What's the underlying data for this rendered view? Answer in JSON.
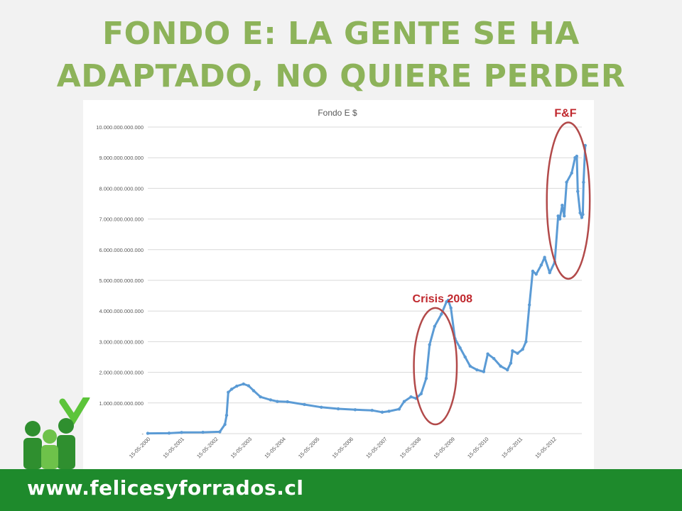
{
  "slide": {
    "title_line1": "FONDO E: LA GENTE SE HA",
    "title_line2": "ADAPTADO, NO QUIERE PERDER",
    "footer_url": "www.felicesyforrados.cl"
  },
  "colors": {
    "title": "#8db35a",
    "footer": "#1e8a2c",
    "series": "#5b9bd5",
    "annotation": "#b24a4a",
    "annotation_text": "#c0272d"
  },
  "logo": {
    "icon": "people-group-icon"
  },
  "chart_data": {
    "type": "line",
    "title": "Fondo E $",
    "ylim": [
      0,
      10000000000000
    ],
    "yticks": [
      {
        "value": 0,
        "label": "-"
      },
      {
        "value": 1000000000000,
        "label": "1.000.000.000.000"
      },
      {
        "value": 2000000000000,
        "label": "2.000.000.000.000"
      },
      {
        "value": 3000000000000,
        "label": "3.000.000.000.000"
      },
      {
        "value": 4000000000000,
        "label": "4.000.000.000.000"
      },
      {
        "value": 5000000000000,
        "label": "5.000.000.000.000"
      },
      {
        "value": 6000000000000,
        "label": "6.000.000.000.000"
      },
      {
        "value": 7000000000000,
        "label": "7.000.000.000.000"
      },
      {
        "value": 8000000000000,
        "label": "8.000.000.000.000"
      },
      {
        "value": 9000000000000,
        "label": "9.000.000.000.000"
      },
      {
        "value": 10000000000000,
        "label": "10.000.000.000.000"
      }
    ],
    "xlim": [
      2000.37,
      2013.2
    ],
    "xticks": [
      {
        "value": 2000.37,
        "label": "15-05-2000"
      },
      {
        "value": 2001.37,
        "label": "15-05-2001"
      },
      {
        "value": 2002.37,
        "label": "15-05-2002"
      },
      {
        "value": 2003.37,
        "label": "15-05-2003"
      },
      {
        "value": 2004.37,
        "label": "15-05-2004"
      },
      {
        "value": 2005.37,
        "label": "15-05-2005"
      },
      {
        "value": 2006.37,
        "label": "15-05-2006"
      },
      {
        "value": 2007.37,
        "label": "15-05-2007"
      },
      {
        "value": 2008.37,
        "label": "15-05-2008"
      },
      {
        "value": 2009.37,
        "label": "15-05-2009"
      },
      {
        "value": 2010.37,
        "label": "15-05-2010"
      },
      {
        "value": 2011.37,
        "label": "15-05-2011"
      },
      {
        "value": 2012.37,
        "label": "15-05-2012"
      }
    ],
    "grid": true,
    "series": [
      {
        "points": [
          [
            2000.37,
            10000000000
          ],
          [
            2001.0,
            15000000000
          ],
          [
            2001.37,
            40000000000
          ],
          [
            2002.0,
            45000000000
          ],
          [
            2002.5,
            60000000000
          ],
          [
            2002.65,
            300000000000
          ],
          [
            2002.7,
            600000000000
          ],
          [
            2002.75,
            1350000000000
          ],
          [
            2002.85,
            1450000000000
          ],
          [
            2003.0,
            1550000000000
          ],
          [
            2003.2,
            1620000000000
          ],
          [
            2003.35,
            1560000000000
          ],
          [
            2003.5,
            1400000000000
          ],
          [
            2003.7,
            1200000000000
          ],
          [
            2004.0,
            1100000000000
          ],
          [
            2004.2,
            1050000000000
          ],
          [
            2004.5,
            1040000000000
          ],
          [
            2005.0,
            950000000000
          ],
          [
            2005.5,
            860000000000
          ],
          [
            2006.0,
            810000000000
          ],
          [
            2006.5,
            780000000000
          ],
          [
            2007.0,
            760000000000
          ],
          [
            2007.3,
            700000000000
          ],
          [
            2007.5,
            730000000000
          ],
          [
            2007.8,
            800000000000
          ],
          [
            2007.95,
            1050000000000
          ],
          [
            2008.15,
            1200000000000
          ],
          [
            2008.3,
            1150000000000
          ],
          [
            2008.45,
            1300000000000
          ],
          [
            2008.6,
            1800000000000
          ],
          [
            2008.7,
            2900000000000
          ],
          [
            2008.85,
            3500000000000
          ],
          [
            2009.05,
            3900000000000
          ],
          [
            2009.2,
            4300000000000
          ],
          [
            2009.25,
            4350000000000
          ],
          [
            2009.33,
            4100000000000
          ],
          [
            2009.45,
            3100000000000
          ],
          [
            2009.6,
            2800000000000
          ],
          [
            2009.75,
            2500000000000
          ],
          [
            2009.9,
            2200000000000
          ],
          [
            2010.1,
            2080000000000
          ],
          [
            2010.3,
            2020000000000
          ],
          [
            2010.42,
            2600000000000
          ],
          [
            2010.6,
            2450000000000
          ],
          [
            2010.8,
            2200000000000
          ],
          [
            2011.0,
            2080000000000
          ],
          [
            2011.1,
            2300000000000
          ],
          [
            2011.15,
            2700000000000
          ],
          [
            2011.3,
            2620000000000
          ],
          [
            2011.45,
            2750000000000
          ],
          [
            2011.55,
            3000000000000
          ],
          [
            2011.65,
            4200000000000
          ],
          [
            2011.75,
            5300000000000
          ],
          [
            2011.85,
            5200000000000
          ],
          [
            2012.0,
            5500000000000
          ],
          [
            2012.1,
            5750000000000
          ],
          [
            2012.25,
            5250000000000
          ],
          [
            2012.4,
            5600000000000
          ],
          [
            2012.5,
            7100000000000
          ],
          [
            2012.55,
            7000000000000
          ],
          [
            2012.62,
            7450000000000
          ],
          [
            2012.68,
            7100000000000
          ],
          [
            2012.75,
            8200000000000
          ],
          [
            2012.9,
            8500000000000
          ],
          [
            2013.0,
            9000000000000
          ],
          [
            2013.05,
            9050000000000
          ],
          [
            2013.08,
            7900000000000
          ],
          [
            2013.15,
            7200000000000
          ],
          [
            2013.2,
            7050000000000
          ],
          [
            2013.23,
            7150000000000
          ],
          [
            2013.25,
            8200000000000
          ],
          [
            2013.3,
            9400000000000
          ]
        ]
      }
    ],
    "annotations": [
      {
        "label": "Crisis 2008",
        "cx": 2008.87,
        "cy": 2200000000000,
        "rx": 1.27,
        "ry": 1900000000000
      },
      {
        "label": "F&F",
        "cx": 2012.8,
        "cy": 7600000000000,
        "rx": 1.27,
        "ry": 2550000000000
      }
    ]
  }
}
